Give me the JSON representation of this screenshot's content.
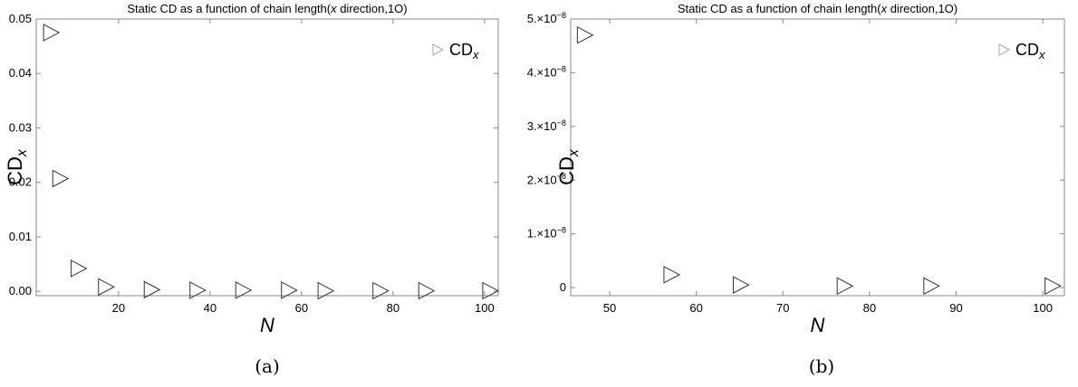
{
  "panels": [
    {
      "caption": "(a)",
      "chart_data": {
        "type": "scatter",
        "title": "Static CD as a function of chain length(x direction,1O)",
        "xlabel": "N",
        "ylabel": "CD_x",
        "legend": {
          "entries": [
            "CD_x"
          ],
          "placement": "top-right"
        },
        "grid": false,
        "xlim": [
          2,
          103
        ],
        "ylim": [
          -0.0008,
          0.05
        ],
        "xticks": [
          20,
          40,
          60,
          80,
          100
        ],
        "xtick_labels": [
          "20",
          "40",
          "60",
          "80",
          "100"
        ],
        "yticks": [
          0,
          0.01,
          0.02,
          0.03,
          0.04,
          0.05
        ],
        "ytick_labels": [
          "0.00",
          "0.01",
          "0.02",
          "0.03",
          "0.04",
          "0.05"
        ],
        "series": [
          {
            "marker": "triangle-right",
            "x": [
              5,
              7,
              11,
              17,
              27,
              37,
              47,
              57,
              65,
              77,
              87,
              101
            ],
            "y": [
              0.0475,
              0.0207,
              0.0042,
              0.0008,
              0.0003,
              0.0002,
              0.0002,
              0.0002,
              0.0001,
              0.0001,
              0.0001,
              0.0001
            ]
          }
        ]
      }
    },
    {
      "caption": "(b)",
      "chart_data": {
        "type": "scatter",
        "title": "Static CD as a function of chain length(x direction,1O)",
        "xlabel": "N",
        "ylabel": "CD_x",
        "legend": {
          "entries": [
            "CD_x"
          ],
          "placement": "top-right"
        },
        "grid": false,
        "xlim": [
          45.5,
          102.5
        ],
        "ylim": [
          -1.5e-09,
          5e-08
        ],
        "xticks": [
          50,
          60,
          70,
          80,
          90,
          100
        ],
        "xtick_labels": [
          "50",
          "60",
          "70",
          "80",
          "90",
          "100"
        ],
        "yticks": [
          0,
          1e-08,
          2e-08,
          3e-08,
          4e-08,
          5e-08
        ],
        "ytick_labels": [
          {
            "mant": "0",
            "exp": ""
          },
          {
            "mant": "1.×10",
            "exp": "−8"
          },
          {
            "mant": "2.×10",
            "exp": "−8"
          },
          {
            "mant": "3.×10",
            "exp": "−8"
          },
          {
            "mant": "4.×10",
            "exp": "−8"
          },
          {
            "mant": "5.×10",
            "exp": "−8"
          }
        ],
        "series": [
          {
            "marker": "triangle-right",
            "x": [
              47,
              57,
              65,
              77,
              87,
              101
            ],
            "y": [
              4.7e-08,
              2.4e-09,
              5e-10,
              3e-10,
              3e-10,
              3e-10
            ]
          }
        ]
      }
    }
  ]
}
